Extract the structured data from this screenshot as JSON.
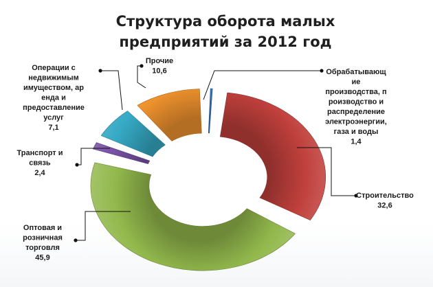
{
  "chart_data": {
    "type": "doughnut",
    "title": [
      "Структура оборота малых",
      "предприятий за 2012 год"
    ],
    "legend": "none",
    "exploded": true,
    "slices": [
      {
        "name": "Обрабатывающие производства, производство и распределение электроэнергии, газа и воды",
        "value": 1.4,
        "color": "#3a78c4",
        "label_lines": [
          "Обрабатывающ",
          "ие",
          "производства, п",
          "роизводство и",
          "распределение",
          "электроэнергии,",
          "газа и воды",
          "1,4"
        ]
      },
      {
        "name": "Строительство",
        "value": 32.6,
        "color": "#c0403c",
        "label_lines": [
          "Строительство",
          "32,6"
        ]
      },
      {
        "name": "Оптовая и розничная торговля",
        "value": 45.9,
        "color": "#92b84c",
        "label_lines": [
          "Оптовая и",
          "розничная",
          "торговля",
          "45,9"
        ]
      },
      {
        "name": "Транспорт и связь",
        "value": 2.4,
        "color": "#7b52a8",
        "label_lines": [
          "Транспорт и",
          "связь",
          "2,4"
        ]
      },
      {
        "name": "Операции с недвижимым имуществом, аренда и предоставление услуг",
        "value": 7.1,
        "color": "#35a9c4",
        "label_lines": [
          "Операции с",
          "недвижимым",
          "имуществом, ар",
          "енда и",
          "предоставление",
          "услуг",
          "7,1"
        ]
      },
      {
        "name": "Прочие",
        "value": 10.6,
        "color": "#f0932e",
        "label_lines": [
          "Прочие",
          "10,6"
        ]
      }
    ]
  }
}
